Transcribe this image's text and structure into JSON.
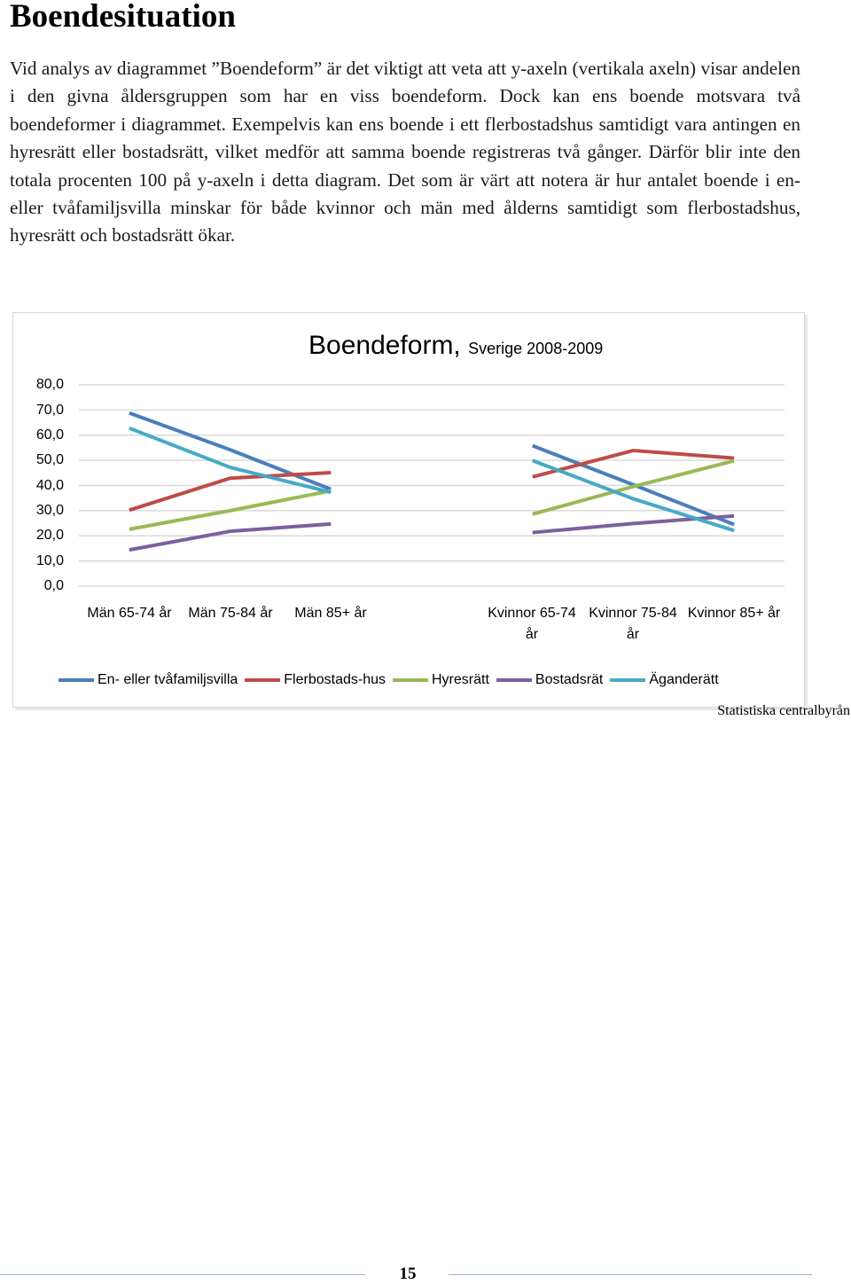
{
  "page": {
    "heading": "Boendesituation",
    "paragraph": "Vid analys av diagrammet ”Boendeform” är det viktigt att veta att y-axeln (vertikala axeln) visar andelen i den givna åldersgruppen som har en viss boendeform. Dock kan ens boende motsvara två boendeformer i diagrammet. Exempelvis kan ens boende i ett flerbostadshus samtidigt vara antingen en hyresrätt eller bostadsrätt, vilket medför att samma boende registreras två gånger. Därför blir inte den totala procenten 100 på y-axeln i detta diagram. Det som är värt att notera är hur antalet boende i en- eller tvåfamiljsvilla minskar för både kvinnor och män med ålderns samtidigt som flerbostadshus, hyresrätt och bostadsrätt ökar.",
    "source": "Statistiska centralbyrån",
    "page_number": "15"
  },
  "chart_data": {
    "type": "line",
    "title": "Boendeform,",
    "subtitle": "Sverige 2008-2009",
    "xlabel": "",
    "ylabel": "",
    "ylim": [
      0,
      80
    ],
    "y_ticks": [
      "80,0",
      "70,0",
      "60,0",
      "50,0",
      "40,0",
      "30,0",
      "20,0",
      "10,0",
      "0,0"
    ],
    "categories": [
      "Män 65-74 år",
      "Män 75-84 år",
      "Män 85+ år",
      "",
      "Kvinnor 65-74 år",
      "Kvinnor 75-84 år",
      "Kvinnor 85+ år"
    ],
    "grid": true,
    "legend_position": "bottom",
    "series": [
      {
        "name": "En- eller tvåfamiljsvilla",
        "color": "#4a7ebb",
        "values": [
          68.8,
          54.2,
          38.5,
          null,
          55.8,
          40.3,
          24.5
        ]
      },
      {
        "name": "Flerbostads-hus",
        "color": "#be4b48",
        "values": [
          30.2,
          42.9,
          45.1,
          null,
          43.4,
          53.9,
          50.9
        ]
      },
      {
        "name": "Hyresrätt",
        "color": "#98b954",
        "values": [
          22.6,
          30.0,
          37.9,
          null,
          28.6,
          39.6,
          49.8
        ]
      },
      {
        "name": "Bostadsrät",
        "color": "#7d5fa0",
        "values": [
          14.4,
          21.8,
          24.7,
          null,
          21.3,
          24.9,
          27.9
        ]
      },
      {
        "name": "Äganderätt",
        "color": "#46aac5",
        "values": [
          62.8,
          47.2,
          37.3,
          null,
          49.9,
          34.7,
          22.1
        ]
      }
    ]
  }
}
